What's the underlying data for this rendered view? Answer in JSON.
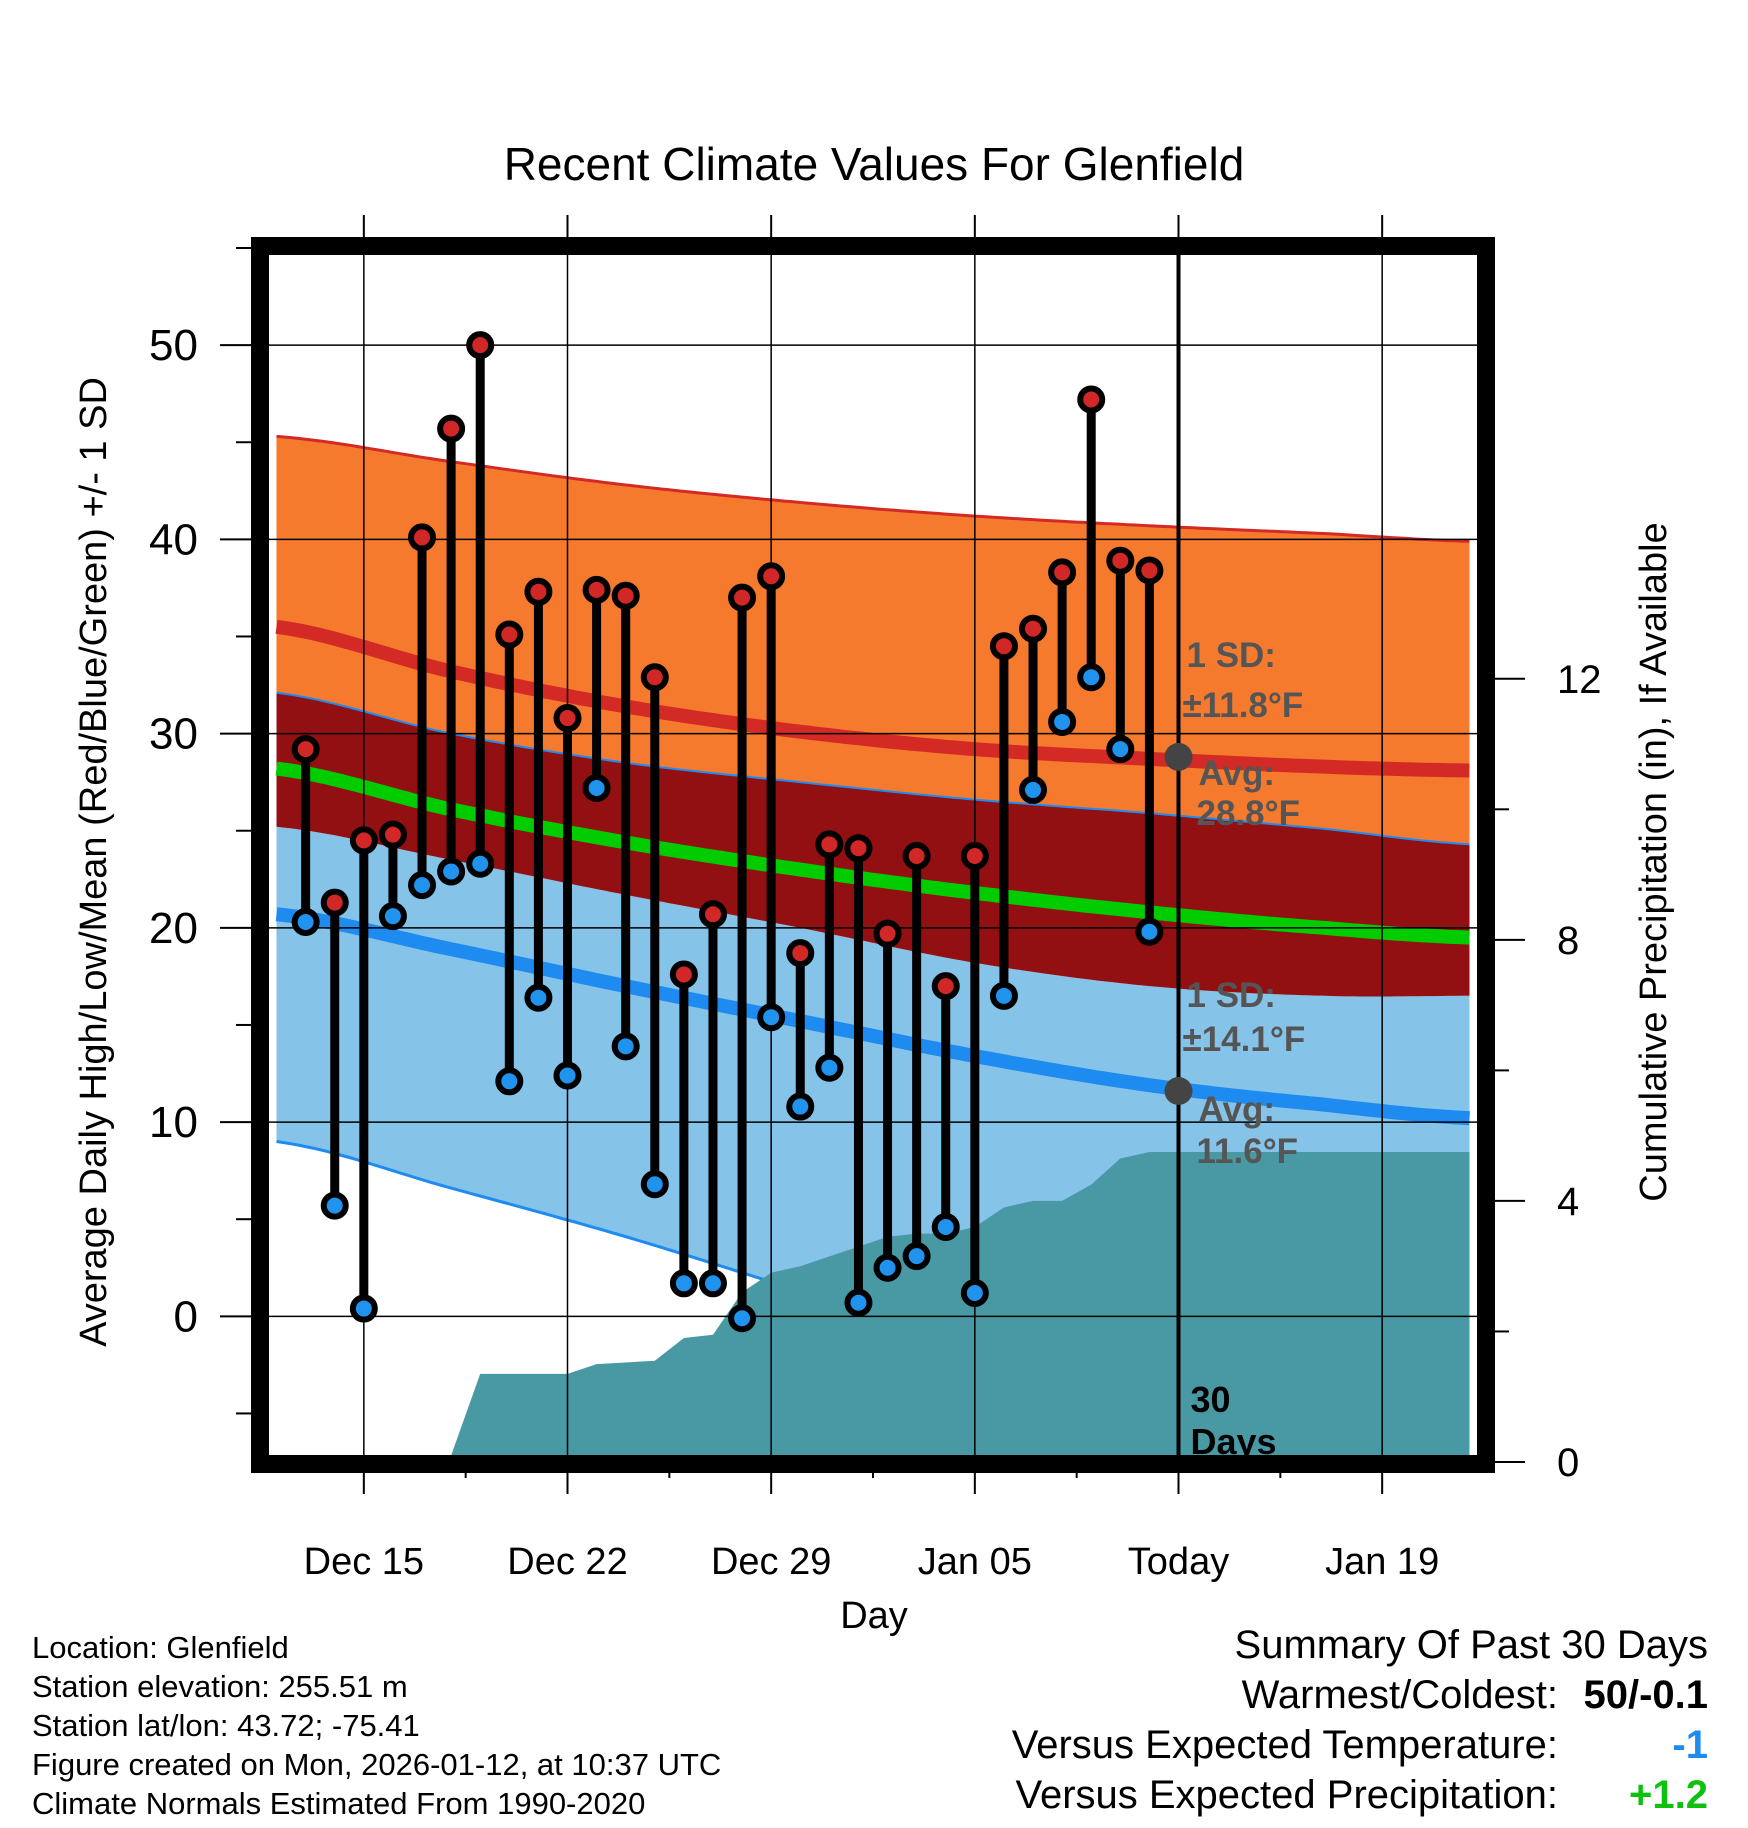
{
  "chart_data": {
    "type": "line",
    "title": "Recent Climate Values For Glenfield",
    "xlabel": "Day",
    "ylabel": "Average Daily High/Low/Mean (Red/Blue/Green) +/- 1 SD",
    "y2label": "Cumulative Precipitation (in), If Available",
    "xlim": [
      -3.5,
      38.5
    ],
    "ylim": [
      -7.5,
      55
    ],
    "y2lim": [
      0,
      18.6
    ],
    "xticks": [
      {
        "x": 0,
        "label": "Dec 15"
      },
      {
        "x": 7,
        "label": "Dec 22"
      },
      {
        "x": 14,
        "label": "Dec 29"
      },
      {
        "x": 21,
        "label": "Jan 05"
      },
      {
        "x": 28,
        "label": "Today"
      },
      {
        "x": 35,
        "label": "Jan 19"
      }
    ],
    "yticks": [
      0,
      10,
      20,
      30,
      40,
      50
    ],
    "y2ticks": [
      0,
      4,
      8,
      12
    ],
    "normals_x": [
      -3,
      3,
      9,
      15,
      21,
      27,
      33,
      38
    ],
    "normals": {
      "high_plus_sd": [
        45.3,
        44.0,
        42.8,
        41.9,
        41.2,
        40.7,
        40.3,
        39.9
      ],
      "high_avg": [
        35.5,
        33.2,
        31.4,
        30.1,
        29.2,
        28.7,
        28.3,
        28.1
      ],
      "high_minus_sd": [
        32.1,
        30.0,
        28.5,
        27.5,
        26.6,
        25.9,
        25.1,
        24.3
      ],
      "mean_avg": [
        28.2,
        26.1,
        24.4,
        23.0,
        21.8,
        20.8,
        20.0,
        19.5
      ],
      "low_plus_sd": [
        25.2,
        23.5,
        21.7,
        20.0,
        18.2,
        17.0,
        16.5,
        16.5
      ],
      "low_avg": [
        20.7,
        18.9,
        17.0,
        15.2,
        13.4,
        11.9,
        10.9,
        10.2
      ],
      "low_minus_sd": [
        9.0,
        6.6,
        4.1,
        1.3,
        -1.5,
        -4.5,
        -7.5,
        -10.0
      ]
    },
    "series": [
      {
        "name": "Daily High",
        "x": [
          -2,
          -1,
          0,
          1,
          2,
          3,
          4,
          5,
          6,
          7,
          8,
          9,
          10,
          11,
          12,
          13,
          14,
          15,
          16,
          17,
          18,
          19,
          20,
          21,
          22,
          23,
          24,
          25,
          26,
          27
        ],
        "values": [
          29.2,
          21.3,
          24.5,
          24.8,
          40.1,
          45.7,
          50.0,
          35.1,
          37.3,
          30.8,
          37.4,
          37.1,
          32.9,
          17.6,
          20.7,
          37.0,
          38.1,
          18.7,
          24.3,
          24.1,
          19.7,
          23.7,
          17.0,
          23.7,
          34.5,
          35.4,
          38.3,
          47.2,
          38.9,
          38.4
        ]
      },
      {
        "name": "Daily Low",
        "x": [
          -2,
          -1,
          0,
          1,
          2,
          3,
          4,
          5,
          6,
          7,
          8,
          9,
          10,
          11,
          12,
          13,
          14,
          15,
          16,
          17,
          18,
          19,
          20,
          21,
          22,
          23,
          24,
          25,
          26,
          27
        ],
        "values": [
          20.3,
          5.7,
          0.4,
          20.6,
          22.2,
          22.9,
          23.3,
          12.1,
          16.4,
          12.4,
          27.2,
          13.9,
          6.8,
          1.7,
          1.7,
          -0.1,
          15.4,
          10.8,
          12.8,
          0.7,
          2.5,
          3.1,
          4.6,
          1.2,
          16.5,
          27.1,
          30.6,
          32.9,
          29.2,
          19.8
        ]
      },
      {
        "name": "Cumulative Precipitation",
        "axis": "right",
        "x": [
          -3,
          3,
          4,
          7,
          8,
          10,
          11,
          12,
          13,
          14,
          15,
          16,
          17,
          18,
          19,
          20,
          21,
          22,
          23,
          24,
          25,
          26,
          27,
          28,
          38
        ],
        "values": [
          0,
          0.1,
          1.35,
          1.35,
          1.5,
          1.55,
          1.9,
          1.95,
          2.6,
          2.9,
          3.0,
          3.15,
          3.3,
          3.45,
          3.5,
          3.5,
          3.6,
          3.9,
          4.0,
          4.0,
          4.25,
          4.65,
          4.75,
          4.75,
          4.75
        ]
      }
    ],
    "annotations": {
      "high_sd_label": "1 SD:",
      "high_sd_value": "±11.8°F",
      "high_avg_label": "Avg:",
      "high_avg_value": "28.8°F",
      "high_avg_y": 28.8,
      "low_sd_label": "1 SD:",
      "low_sd_value": "±14.1°F",
      "low_avg_label": "Avg:",
      "low_avg_value": "11.6°F",
      "low_avg_y": 11.6,
      "days_number": "30",
      "days_word": "Days",
      "today_x": 28
    }
  },
  "colors": {
    "high_band": "#f57a2e",
    "high_line": "#d42a26",
    "overlap_band": "#920f12",
    "mean_line": "#00cc00",
    "low_band": "#85c3e8",
    "low_line": "#1e8bf0",
    "precip_fill": "#4999a4",
    "high_dot": "#d22727",
    "low_dot": "#2093ee",
    "annotation_text": "#555555",
    "avg_dot": "#444444"
  },
  "footer": {
    "location": "Location: Glenfield",
    "elevation": "Station elevation: 255.51 m",
    "latlon": "Station lat/lon: 43.72; -75.41",
    "created": "Figure created on Mon, 2026-01-12, at 10:37 UTC",
    "normals": "Climate Normals Estimated From 1990-2020"
  },
  "summary": {
    "title": "Summary Of Past 30 Days",
    "warmest_label": "Warmest/Coldest:",
    "warmest_value": "50/-0.1",
    "temp_label": "Versus Expected Temperature:",
    "temp_value": "-1",
    "temp_color": "#1e8bf0",
    "precip_label": "Versus Expected Precipitation:",
    "precip_value": "+1.2",
    "precip_color": "#0ec10e"
  }
}
